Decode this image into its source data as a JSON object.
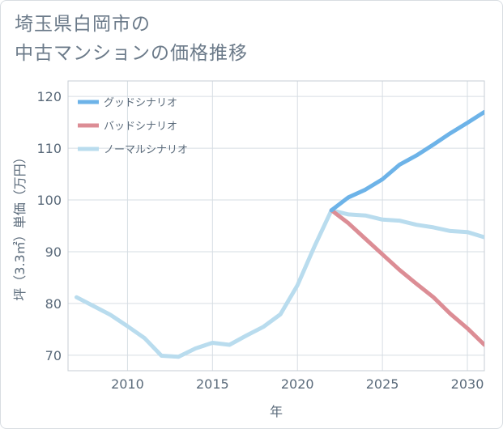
{
  "title_lines": [
    "埼玉県白岡市の",
    "中古マンションの価格推移"
  ],
  "chart_data": {
    "type": "line",
    "title": "埼玉県白岡市の中古マンションの価格推移",
    "xlabel": "年",
    "ylabel": "坪（3.3㎡）単価（万円）",
    "xlim": [
      2006.5,
      2031
    ],
    "ylim": [
      67,
      123
    ],
    "xticks": [
      2010,
      2015,
      2020,
      2025,
      2030
    ],
    "yticks": [
      70,
      80,
      90,
      100,
      110,
      120
    ],
    "grid": true,
    "legend_position": "top-left",
    "series": [
      {
        "name": "グッドシナリオ",
        "color": "#6db3e8",
        "x": [
          2022,
          2023,
          2024,
          2025,
          2026,
          2027,
          2028,
          2029,
          2030,
          2031
        ],
        "y": [
          98.0,
          100.5,
          102.0,
          104.0,
          106.8,
          108.6,
          110.7,
          112.9,
          114.9,
          117.0
        ]
      },
      {
        "name": "バッドシナリオ",
        "color": "#dc8d95",
        "x": [
          2022,
          2023,
          2024,
          2025,
          2026,
          2027,
          2028,
          2029,
          2030,
          2031
        ],
        "y": [
          98.0,
          95.5,
          92.5,
          89.5,
          86.5,
          83.8,
          81.2,
          78.0,
          75.2,
          72.0
        ]
      },
      {
        "name": "ノーマルシナリオ",
        "color": "#b9dcee",
        "x": [
          2007,
          2008,
          2009,
          2010,
          2011,
          2012,
          2013,
          2014,
          2015,
          2016,
          2017,
          2018,
          2019,
          2020,
          2021,
          2022,
          2023,
          2024,
          2025,
          2026,
          2027,
          2028,
          2029,
          2030,
          2031
        ],
        "y": [
          81.2,
          79.5,
          77.8,
          75.6,
          73.3,
          69.9,
          69.7,
          71.3,
          72.4,
          72.0,
          73.8,
          75.5,
          77.9,
          83.5,
          91.0,
          98.0,
          97.2,
          97.0,
          96.2,
          96.0,
          95.2,
          94.7,
          94.0,
          93.8,
          92.8
        ]
      }
    ]
  }
}
